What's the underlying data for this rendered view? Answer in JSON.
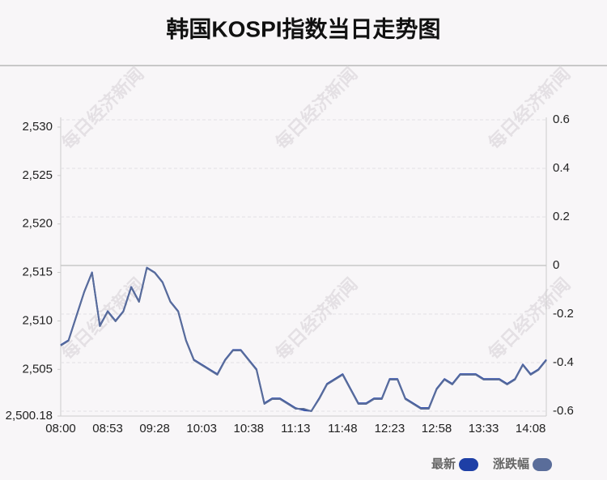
{
  "chart_data": {
    "type": "line",
    "title": "韩国KOSPI指数当日走势图",
    "watermark": "每日经济新闻",
    "categories": [
      "08:00",
      null,
      null,
      null,
      null,
      null,
      "08:53",
      null,
      null,
      null,
      null,
      null,
      "09:28",
      null,
      null,
      null,
      null,
      null,
      "10:03",
      null,
      null,
      null,
      null,
      null,
      "10:38",
      null,
      null,
      null,
      null,
      null,
      "11:13",
      null,
      null,
      null,
      null,
      null,
      "11:48",
      null,
      null,
      null,
      null,
      null,
      "12:23",
      null,
      null,
      null,
      null,
      null,
      "12:58",
      null,
      null,
      null,
      null,
      null,
      "13:33",
      null,
      null,
      null,
      null,
      null,
      "14:08",
      null,
      null
    ],
    "series": [
      {
        "name": "最新",
        "color": "#1e3fa6",
        "values": [
          2507.5,
          2508,
          2510.5,
          2513,
          2515,
          2509.5,
          2511,
          2510,
          2511,
          2513.5,
          2512,
          2515.5,
          2515,
          2514,
          2512,
          2511,
          2508,
          2506,
          2505.5,
          2505,
          2504.5,
          2506,
          2507,
          2507,
          2506,
          2505,
          2501.5,
          2502,
          2502,
          2501.5,
          2501,
          2500.8,
          2500.7,
          2502,
          2503.5,
          2504,
          2504.5,
          2503,
          2501.5,
          2501.5,
          2502,
          2502,
          2504,
          2504,
          2502,
          2501.5,
          2501,
          2501,
          2503,
          2504,
          2503.5,
          2504.5,
          2504.5,
          2504.5,
          2504,
          2504,
          2504,
          2503.5,
          2504,
          2505.5,
          2504.5,
          2505,
          2506
        ]
      },
      {
        "name": "涨跌幅",
        "color": "#5a6d9a",
        "axis": "y2",
        "values": [
          -0.33,
          -0.31,
          -0.21,
          -0.11,
          -0.03,
          -0.25,
          -0.19,
          -0.23,
          -0.19,
          -0.09,
          -0.15,
          -0.01,
          -0.03,
          -0.07,
          -0.15,
          -0.19,
          -0.31,
          -0.39,
          -0.41,
          -0.43,
          -0.45,
          -0.39,
          -0.35,
          -0.35,
          -0.39,
          -0.43,
          -0.57,
          -0.55,
          -0.55,
          -0.57,
          -0.59,
          -0.59,
          -0.6,
          -0.55,
          -0.49,
          -0.47,
          -0.45,
          -0.51,
          -0.57,
          -0.57,
          -0.55,
          -0.55,
          -0.47,
          -0.47,
          -0.55,
          -0.57,
          -0.59,
          -0.59,
          -0.51,
          -0.47,
          -0.49,
          -0.45,
          -0.45,
          -0.45,
          -0.47,
          -0.47,
          -0.47,
          -0.49,
          -0.47,
          -0.41,
          -0.45,
          -0.43,
          -0.39
        ]
      }
    ],
    "ylim": [
      2500.18,
      2531
    ],
    "yticks": [
      {
        "value": 2500.18,
        "label": "2,500.18"
      },
      {
        "value": 2505,
        "label": "2,505"
      },
      {
        "value": 2510,
        "label": "2,510"
      },
      {
        "value": 2515,
        "label": "2,515"
      },
      {
        "value": 2520,
        "label": "2,520"
      },
      {
        "value": 2525,
        "label": "2,525"
      },
      {
        "value": 2530,
        "label": "2,530"
      }
    ],
    "y2lim": [
      -0.62,
      0.61
    ],
    "y2ticks": [
      0.6,
      0.4,
      0.2,
      0,
      -0.2,
      -0.4,
      -0.6
    ],
    "grid": true
  }
}
